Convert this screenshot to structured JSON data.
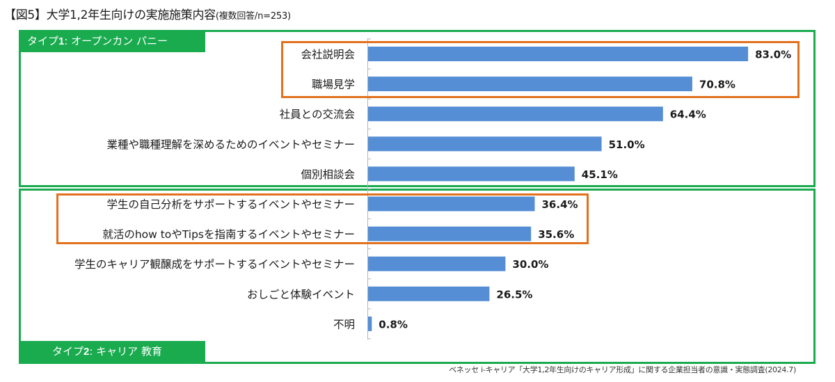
{
  "title": {
    "main": "【図5】大学1,2年生向けの実施施策内容",
    "sub": "(複数回答/n=253)"
  },
  "groups": [
    {
      "id": "type1",
      "label_prefix": "タイプ",
      "label_num": "1",
      "label_rest": ": オープンカン パニー",
      "color": "#1aab4f"
    },
    {
      "id": "type2",
      "label_prefix": "タイプ",
      "label_num": "2",
      "label_rest": ": キャリア 教育",
      "color": "#1aab4f"
    }
  ],
  "highlight_color": "#e2711d",
  "bar_color": "#558ed5",
  "source": "ベネッセ i-キャリア「大学1,2年生向けのキャリア形成」に関する企業担当者の意識・実態調査(2024.7)",
  "chart_data": {
    "type": "bar",
    "orientation": "horizontal",
    "title": "【図5】大学1,2年生向けの実施施策内容(複数回答/n=253)",
    "xlabel": "",
    "ylabel": "",
    "xlim": [
      0,
      100
    ],
    "grid": false,
    "unit": "%",
    "categories": [
      "会社説明会",
      "職場見学",
      "社員との交流会",
      "業種や職種理解を深めるためのイベントやセミナー",
      "個別相談会",
      "学生の自己分析をサポートするイベントやセミナー",
      "就活のhow toやTipsを指南するイベントやセミナー",
      "学生のキャリア観醸成をサポートするイベントやセミナー",
      "おしごと体験イベント",
      "不明"
    ],
    "values": [
      83.0,
      70.8,
      64.4,
      51.0,
      45.1,
      36.4,
      35.6,
      30.0,
      26.5,
      0.8
    ],
    "data_labels": [
      "83.0%",
      "70.8%",
      "64.4%",
      "51.0%",
      "45.1%",
      "36.4%",
      "35.6%",
      "30.0%",
      "26.5%",
      "0.8%"
    ],
    "group_of_category": [
      "type1",
      "type1",
      "type1",
      "type1",
      "type1",
      "type2",
      "type2",
      "type2",
      "type2",
      "type2"
    ],
    "highlighted_categories": [
      [
        0,
        1
      ],
      [
        5,
        6
      ]
    ]
  }
}
